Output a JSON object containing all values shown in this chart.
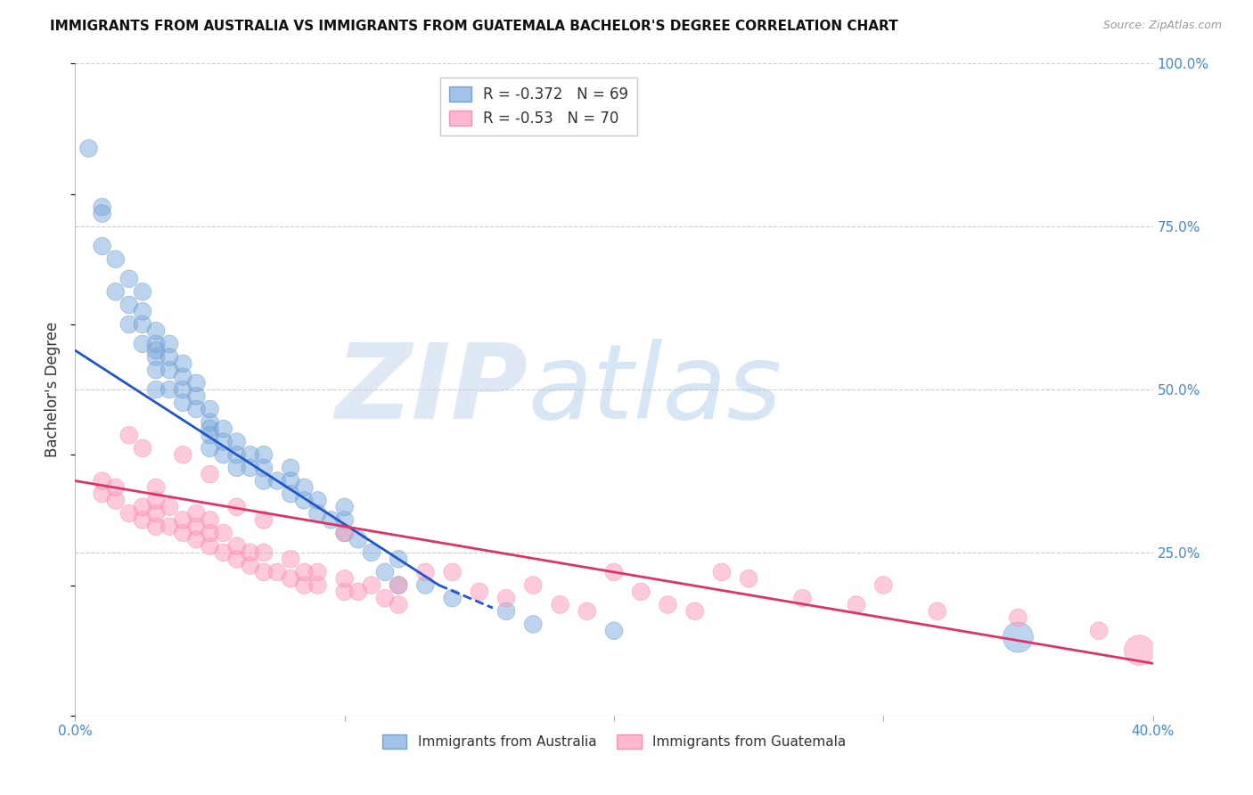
{
  "title": "IMMIGRANTS FROM AUSTRALIA VS IMMIGRANTS FROM GUATEMALA BACHELOR'S DEGREE CORRELATION CHART",
  "source": "Source: ZipAtlas.com",
  "ylabel_left": "Bachelor's Degree",
  "x_min": 0.0,
  "x_max": 0.4,
  "y_min": 0.0,
  "y_max": 1.0,
  "x_ticks": [
    0.0,
    0.1,
    0.2,
    0.3,
    0.4
  ],
  "x_tick_labels": [
    "0.0%",
    "",
    "",
    "",
    "40.0%"
  ],
  "y_ticks_right": [
    0.0,
    0.25,
    0.5,
    0.75,
    1.0
  ],
  "y_tick_labels_right": [
    "",
    "25.0%",
    "50.0%",
    "75.0%",
    "100.0%"
  ],
  "australia_color": "#7aaadd",
  "australia_edge_color": "#5588bb",
  "guatemala_color": "#ff99bb",
  "guatemala_edge_color": "#ee7799",
  "trend_aus_color": "#2255cc",
  "trend_gua_color": "#dd3366",
  "australia_R": -0.372,
  "australia_N": 69,
  "guatemala_R": -0.53,
  "guatemala_N": 70,
  "watermark_zip": "ZIP",
  "watermark_atlas": "atlas",
  "background_color": "#ffffff",
  "grid_color": "#cccccc",
  "title_color": "#111111",
  "right_axis_color": "#4488cc",
  "legend_box_color": "#ffffff",
  "legend_border_color": "#bbbbbb",
  "aus_scatter_x": [
    0.005,
    0.01,
    0.01,
    0.01,
    0.015,
    0.015,
    0.02,
    0.02,
    0.02,
    0.025,
    0.025,
    0.025,
    0.025,
    0.03,
    0.03,
    0.03,
    0.03,
    0.03,
    0.03,
    0.035,
    0.035,
    0.035,
    0.035,
    0.04,
    0.04,
    0.04,
    0.04,
    0.045,
    0.045,
    0.045,
    0.05,
    0.05,
    0.05,
    0.05,
    0.05,
    0.055,
    0.055,
    0.055,
    0.06,
    0.06,
    0.06,
    0.065,
    0.065,
    0.07,
    0.07,
    0.07,
    0.075,
    0.08,
    0.08,
    0.08,
    0.085,
    0.085,
    0.09,
    0.09,
    0.095,
    0.1,
    0.1,
    0.1,
    0.105,
    0.11,
    0.115,
    0.12,
    0.12,
    0.13,
    0.14,
    0.16,
    0.17,
    0.2,
    0.35
  ],
  "aus_scatter_y": [
    0.87,
    0.72,
    0.78,
    0.77,
    0.65,
    0.7,
    0.6,
    0.63,
    0.67,
    0.57,
    0.6,
    0.62,
    0.65,
    0.55,
    0.57,
    0.59,
    0.56,
    0.53,
    0.5,
    0.5,
    0.53,
    0.55,
    0.57,
    0.48,
    0.5,
    0.52,
    0.54,
    0.47,
    0.49,
    0.51,
    0.45,
    0.47,
    0.43,
    0.41,
    0.44,
    0.42,
    0.44,
    0.4,
    0.38,
    0.4,
    0.42,
    0.38,
    0.4,
    0.36,
    0.38,
    0.4,
    0.36,
    0.34,
    0.36,
    0.38,
    0.33,
    0.35,
    0.31,
    0.33,
    0.3,
    0.28,
    0.3,
    0.32,
    0.27,
    0.25,
    0.22,
    0.2,
    0.24,
    0.2,
    0.18,
    0.16,
    0.14,
    0.13,
    0.12
  ],
  "aus_scatter_sizes": [
    200,
    200,
    200,
    200,
    200,
    200,
    200,
    200,
    200,
    200,
    200,
    200,
    200,
    200,
    200,
    200,
    200,
    200,
    200,
    200,
    200,
    200,
    200,
    200,
    200,
    200,
    200,
    200,
    200,
    200,
    200,
    200,
    200,
    200,
    200,
    200,
    200,
    200,
    200,
    200,
    200,
    200,
    200,
    200,
    200,
    200,
    200,
    200,
    200,
    200,
    200,
    200,
    200,
    200,
    200,
    200,
    200,
    200,
    200,
    200,
    200,
    200,
    200,
    200,
    200,
    200,
    200,
    200,
    600
  ],
  "gua_scatter_x": [
    0.01,
    0.01,
    0.015,
    0.015,
    0.02,
    0.02,
    0.025,
    0.025,
    0.025,
    0.03,
    0.03,
    0.03,
    0.03,
    0.035,
    0.035,
    0.04,
    0.04,
    0.04,
    0.045,
    0.045,
    0.045,
    0.05,
    0.05,
    0.05,
    0.05,
    0.055,
    0.055,
    0.06,
    0.06,
    0.06,
    0.065,
    0.065,
    0.07,
    0.07,
    0.07,
    0.075,
    0.08,
    0.08,
    0.085,
    0.085,
    0.09,
    0.09,
    0.1,
    0.1,
    0.1,
    0.105,
    0.11,
    0.115,
    0.12,
    0.12,
    0.13,
    0.14,
    0.15,
    0.16,
    0.17,
    0.18,
    0.19,
    0.2,
    0.21,
    0.22,
    0.23,
    0.24,
    0.25,
    0.27,
    0.29,
    0.3,
    0.32,
    0.35,
    0.38,
    0.395
  ],
  "gua_scatter_y": [
    0.34,
    0.36,
    0.33,
    0.35,
    0.31,
    0.43,
    0.3,
    0.32,
    0.41,
    0.29,
    0.31,
    0.33,
    0.35,
    0.29,
    0.32,
    0.28,
    0.3,
    0.4,
    0.27,
    0.29,
    0.31,
    0.26,
    0.28,
    0.3,
    0.37,
    0.25,
    0.28,
    0.24,
    0.26,
    0.32,
    0.23,
    0.25,
    0.22,
    0.25,
    0.3,
    0.22,
    0.21,
    0.24,
    0.2,
    0.22,
    0.2,
    0.22,
    0.19,
    0.21,
    0.28,
    0.19,
    0.2,
    0.18,
    0.17,
    0.2,
    0.22,
    0.22,
    0.19,
    0.18,
    0.2,
    0.17,
    0.16,
    0.22,
    0.19,
    0.17,
    0.16,
    0.22,
    0.21,
    0.18,
    0.17,
    0.2,
    0.16,
    0.15,
    0.13,
    0.1
  ],
  "gua_scatter_sizes": [
    200,
    200,
    200,
    200,
    200,
    200,
    200,
    200,
    200,
    200,
    200,
    200,
    200,
    200,
    200,
    200,
    200,
    200,
    200,
    200,
    200,
    200,
    200,
    200,
    200,
    200,
    200,
    200,
    200,
    200,
    200,
    200,
    200,
    200,
    200,
    200,
    200,
    200,
    200,
    200,
    200,
    200,
    200,
    200,
    200,
    200,
    200,
    200,
    200,
    200,
    200,
    200,
    200,
    200,
    200,
    200,
    200,
    200,
    200,
    200,
    200,
    200,
    200,
    200,
    200,
    200,
    200,
    200,
    200,
    600
  ]
}
